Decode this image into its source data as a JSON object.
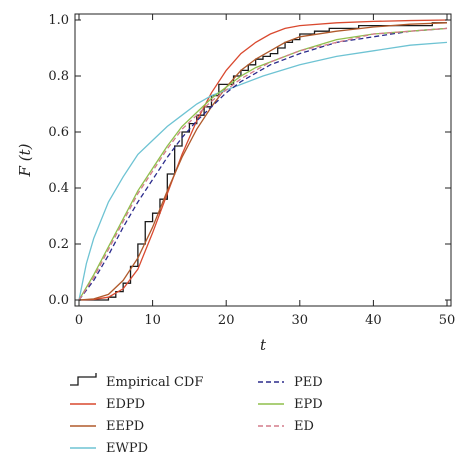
{
  "chart_data": {
    "type": "line",
    "title": "",
    "xlabel": "t",
    "ylabel": "F (t)",
    "xlim": [
      0,
      50
    ],
    "ylim": [
      0,
      1
    ],
    "x_ticks": [
      "0",
      "10",
      "20",
      "30",
      "40",
      "50"
    ],
    "y_ticks": [
      "0.0",
      "0.2",
      "0.4",
      "0.6",
      "0.8",
      "1.0"
    ],
    "grid": false,
    "legend_position": "below",
    "series": [
      {
        "name": "Empirical CDF",
        "color": "#1a1a1a",
        "style": "step",
        "x": [
          0,
          4,
          5,
          6,
          7,
          8,
          9,
          10,
          11,
          12,
          13,
          14,
          15,
          16,
          17,
          18,
          19,
          20,
          21,
          22,
          23,
          24,
          25,
          26,
          27,
          28,
          29,
          30,
          32,
          34,
          36,
          38,
          40,
          42,
          44,
          46,
          48,
          50
        ],
        "y": [
          0,
          0.01,
          0.03,
          0.06,
          0.12,
          0.2,
          0.28,
          0.31,
          0.36,
          0.45,
          0.55,
          0.6,
          0.63,
          0.66,
          0.69,
          0.73,
          0.77,
          0.77,
          0.8,
          0.82,
          0.84,
          0.86,
          0.87,
          0.88,
          0.9,
          0.92,
          0.93,
          0.95,
          0.96,
          0.97,
          0.97,
          0.98,
          0.98,
          0.98,
          0.98,
          0.98,
          0.99,
          0.99
        ]
      },
      {
        "name": "EDPD",
        "color": "#d9492f",
        "style": "solid",
        "x": [
          0,
          2,
          4,
          6,
          8,
          10,
          12,
          14,
          16,
          18,
          20,
          22,
          24,
          26,
          28,
          30,
          35,
          40,
          45,
          50
        ],
        "y": [
          0,
          0.002,
          0.01,
          0.04,
          0.11,
          0.24,
          0.38,
          0.52,
          0.64,
          0.74,
          0.82,
          0.88,
          0.92,
          0.95,
          0.97,
          0.98,
          0.99,
          0.995,
          0.998,
          1.0
        ]
      },
      {
        "name": "EEPD",
        "color": "#b05a2c",
        "style": "solid",
        "x": [
          0,
          2,
          4,
          6,
          8,
          10,
          12,
          14,
          16,
          18,
          20,
          22,
          24,
          26,
          28,
          30,
          35,
          40,
          45,
          50
        ],
        "y": [
          0,
          0.004,
          0.02,
          0.07,
          0.15,
          0.26,
          0.39,
          0.51,
          0.61,
          0.69,
          0.76,
          0.82,
          0.86,
          0.89,
          0.92,
          0.94,
          0.96,
          0.975,
          0.985,
          0.99
        ]
      },
      {
        "name": "EWPD",
        "color": "#6ec3d3",
        "style": "solid",
        "x": [
          0,
          1,
          2,
          4,
          6,
          8,
          10,
          12,
          14,
          16,
          18,
          20,
          25,
          30,
          35,
          40,
          45,
          50
        ],
        "y": [
          0,
          0.13,
          0.22,
          0.35,
          0.44,
          0.52,
          0.57,
          0.62,
          0.66,
          0.7,
          0.73,
          0.75,
          0.8,
          0.84,
          0.87,
          0.89,
          0.91,
          0.92
        ]
      },
      {
        "name": "PED",
        "color": "#2b2b8c",
        "style": "dashed",
        "x": [
          0,
          2,
          4,
          6,
          8,
          10,
          12,
          14,
          16,
          18,
          20,
          22,
          24,
          26,
          28,
          30,
          35,
          40,
          45,
          50
        ],
        "y": [
          0,
          0.07,
          0.16,
          0.26,
          0.35,
          0.43,
          0.51,
          0.58,
          0.64,
          0.69,
          0.74,
          0.78,
          0.81,
          0.84,
          0.86,
          0.88,
          0.92,
          0.94,
          0.96,
          0.97
        ]
      },
      {
        "name": "EPD",
        "color": "#8fbf4c",
        "style": "solid",
        "x": [
          0,
          2,
          4,
          6,
          8,
          10,
          12,
          14,
          16,
          18,
          20,
          22,
          24,
          26,
          28,
          30,
          35,
          40,
          45,
          50
        ],
        "y": [
          0,
          0.09,
          0.19,
          0.29,
          0.39,
          0.47,
          0.55,
          0.62,
          0.67,
          0.72,
          0.76,
          0.8,
          0.83,
          0.85,
          0.87,
          0.89,
          0.93,
          0.95,
          0.96,
          0.97
        ]
      },
      {
        "name": "ED",
        "color": "#d47b8a",
        "style": "dashed",
        "x": [
          0,
          2,
          4,
          6,
          8,
          10,
          12,
          14,
          16,
          18,
          20,
          22,
          24,
          26,
          28,
          30,
          35,
          40,
          45,
          50
        ],
        "y": [
          0,
          0.08,
          0.18,
          0.28,
          0.38,
          0.46,
          0.54,
          0.61,
          0.66,
          0.71,
          0.75,
          0.79,
          0.82,
          0.85,
          0.87,
          0.89,
          0.92,
          0.95,
          0.96,
          0.97
        ]
      }
    ]
  }
}
